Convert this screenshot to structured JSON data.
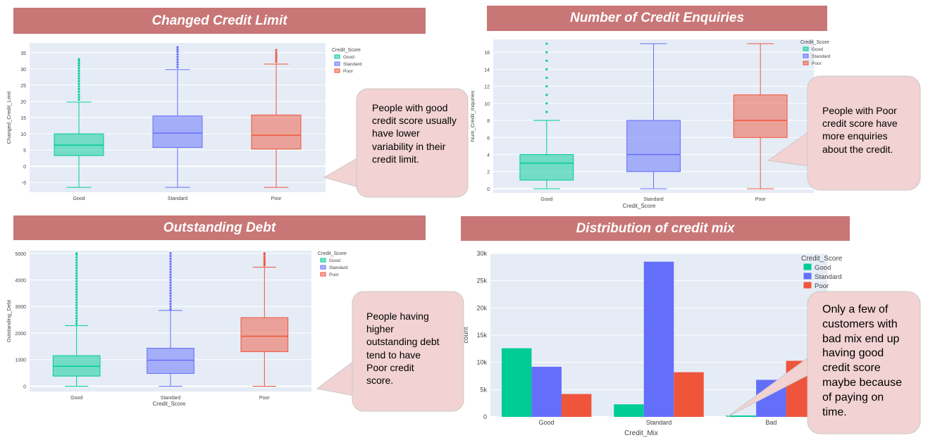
{
  "colors": {
    "Good": "#00cc96",
    "Standard": "#636efa",
    "Poor": "#ef553b",
    "banner": "#c87676",
    "plot_bg": "#e5ecf6",
    "callout": "#f2d2d2"
  },
  "chart_data": [
    {
      "id": "credit-limit",
      "type": "box",
      "title": "Changed Credit Limit",
      "xlabel": "",
      "ylabel": "Changed_Credit_Limit",
      "ylim": [
        -8,
        38
      ],
      "yticks": [
        -5,
        0,
        5,
        10,
        15,
        20,
        25,
        30,
        35
      ],
      "legend_title": "Credit_Score",
      "legend": [
        "Good",
        "Standard",
        "Poor"
      ],
      "legend_position": "right",
      "categories": [
        "Good",
        "Standard",
        "Poor"
      ],
      "boxes": [
        {
          "category": "Good",
          "min": -6.5,
          "q1": 3.3,
          "median": 6.5,
          "q3": 10,
          "max": 19.8,
          "outliers": [
            20.5,
            21.3,
            22.1,
            23,
            23.8,
            24.6,
            25.4,
            26.2,
            27,
            27.8,
            28.6,
            29.4,
            30.2,
            31,
            31.7,
            32.4,
            33
          ]
        },
        {
          "category": "Standard",
          "min": -6.5,
          "q1": 5.8,
          "median": 10.2,
          "q3": 15.5,
          "max": 29.8,
          "outliers": [
            30.5,
            31.3,
            32.1,
            32.9,
            33.7,
            34.5,
            35.3,
            36,
            36.7
          ]
        },
        {
          "category": "Poor",
          "min": -6.5,
          "q1": 5.3,
          "median": 9.6,
          "q3": 15.8,
          "max": 31.5,
          "outliers": [
            32.2,
            32.9,
            33.6,
            34.3,
            35,
            35.8
          ]
        }
      ],
      "annotation": "People with good credit score usually have lower variability in their credit limit."
    },
    {
      "id": "credit-enquiries",
      "type": "box",
      "title": "Number of Credit Enquiries",
      "xlabel": "Credit_Score",
      "ylabel": "Num_Credit_Inquiries",
      "ylim": [
        -0.5,
        17.5
      ],
      "yticks": [
        0,
        2,
        4,
        6,
        8,
        10,
        12,
        14,
        16
      ],
      "legend_title": "Credit_Score",
      "legend": [
        "Good",
        "Standard",
        "Poor"
      ],
      "legend_position": "right",
      "categories": [
        "Good",
        "Standard",
        "Poor"
      ],
      "boxes": [
        {
          "category": "Good",
          "min": 0,
          "q1": 1,
          "median": 3,
          "q3": 4,
          "max": 8,
          "outliers": [
            9,
            10,
            11,
            12,
            13,
            14,
            15,
            16,
            17
          ]
        },
        {
          "category": "Standard",
          "min": 0,
          "q1": 2,
          "median": 4,
          "q3": 8,
          "max": 17,
          "outliers": []
        },
        {
          "category": "Poor",
          "min": 0,
          "q1": 6,
          "median": 8,
          "q3": 11,
          "max": 17,
          "outliers": []
        }
      ],
      "annotation": "People with Poor credit score have more enquiries about the credit."
    },
    {
      "id": "outstanding-debt",
      "type": "box",
      "title": "Outstanding Debt",
      "xlabel": "Credit_Score",
      "ylabel": "Outstanding_Debt",
      "ylim": [
        -200,
        5100
      ],
      "yticks": [
        0,
        1000,
        2000,
        3000,
        4000,
        5000
      ],
      "legend_title": "Credit_Score",
      "legend": [
        "Good",
        "Standard",
        "Poor"
      ],
      "legend_position": "right",
      "categories": [
        "Good",
        "Standard",
        "Poor"
      ],
      "boxes": [
        {
          "category": "Good",
          "min": 0,
          "q1": 380,
          "median": 750,
          "q3": 1150,
          "max": 2280,
          "outliers": [
            2350,
            2450,
            2550,
            2650,
            2750,
            2850,
            2950,
            3050,
            3150,
            3250,
            3350,
            3450,
            3550,
            3650,
            3750,
            3850,
            3950,
            4050,
            4150,
            4250,
            4350,
            4450,
            4550,
            4650,
            4750,
            4850,
            4950,
            5000
          ]
        },
        {
          "category": "Standard",
          "min": 0,
          "q1": 480,
          "median": 980,
          "q3": 1430,
          "max": 2850,
          "outliers": [
            2900,
            3000,
            3100,
            3200,
            3300,
            3400,
            3500,
            3600,
            3700,
            3800,
            3900,
            4000,
            4100,
            4200,
            4300,
            4400,
            4500,
            4600,
            4700,
            4800,
            4900,
            5000
          ]
        },
        {
          "category": "Poor",
          "min": 0,
          "q1": 1300,
          "median": 1880,
          "q3": 2580,
          "max": 4480,
          "outliers": [
            4550,
            4620,
            4700,
            4780,
            4860,
            4950,
            5000
          ]
        }
      ],
      "annotation": "People having higher outstanding debt tend to have Poor credit score."
    },
    {
      "id": "credit-mix",
      "type": "bar",
      "title": "Distribution of credit mix",
      "xlabel": "Credit_Mix",
      "ylabel": "count",
      "ylim": [
        0,
        30000
      ],
      "yticks": [
        0,
        5000,
        10000,
        15000,
        20000,
        25000,
        30000
      ],
      "ytick_labels": [
        "0",
        "5k",
        "10k",
        "15k",
        "20k",
        "25k",
        "30k"
      ],
      "legend_title": "Credit_Score",
      "legend": [
        "Good",
        "Standard",
        "Poor"
      ],
      "legend_position": "right",
      "categories": [
        "Good",
        "Standard",
        "Bad"
      ],
      "series": [
        {
          "name": "Good",
          "values": [
            12600,
            2300,
            250
          ]
        },
        {
          "name": "Standard",
          "values": [
            9200,
            28500,
            6800
          ]
        },
        {
          "name": "Poor",
          "values": [
            4200,
            8200,
            10300
          ]
        }
      ],
      "annotation": "Only a few of customers with bad mix end up having good credit score maybe because of paying on time."
    }
  ]
}
